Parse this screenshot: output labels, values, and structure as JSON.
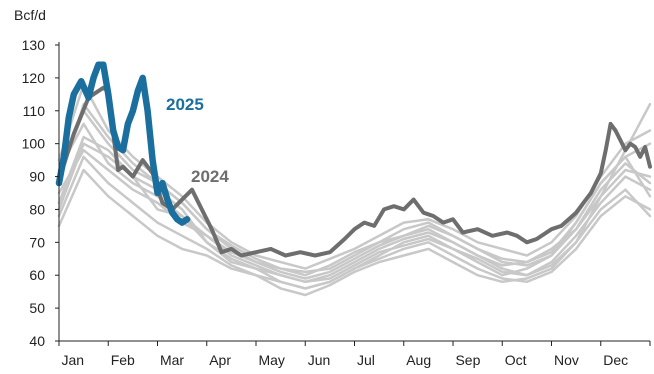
{
  "chart_data": {
    "type": "line",
    "ylabel": "Bcf/d",
    "ylim": [
      40,
      130
    ],
    "yticks": [
      40,
      50,
      60,
      70,
      80,
      90,
      100,
      110,
      120,
      130
    ],
    "xlim": [
      0,
      12
    ],
    "x_tick_labels": [
      "Jan",
      "Feb",
      "Mar",
      "Apr",
      "May",
      "Jun",
      "Jul",
      "Aug",
      "Sep",
      "Oct",
      "Nov",
      "Dec"
    ],
    "grid": false,
    "colors": {
      "history": "#c8c8c8",
      "y2024": "#6e6e6e",
      "y2025": "#1a6f9e"
    },
    "annotations": [
      {
        "text": "2025",
        "series": "2025"
      },
      {
        "text": "2024",
        "series": "2024"
      }
    ],
    "series": [
      {
        "name": "2025",
        "x": [
          0.0,
          0.1,
          0.2,
          0.3,
          0.45,
          0.6,
          0.7,
          0.8,
          0.9,
          1.0,
          1.1,
          1.2,
          1.3,
          1.4,
          1.5,
          1.6,
          1.7,
          1.8,
          1.9,
          2.0,
          2.1,
          2.2,
          2.3,
          2.4,
          2.5,
          2.6
        ],
        "y": [
          88,
          96,
          108,
          115,
          119,
          114,
          120,
          124,
          124,
          115,
          104,
          99,
          98,
          106,
          110,
          116,
          120,
          110,
          95,
          85,
          88,
          83,
          79,
          77,
          76,
          77
        ]
      },
      {
        "name": "2024",
        "x": [
          0.0,
          0.3,
          0.6,
          0.9,
          1.0,
          1.1,
          1.2,
          1.3,
          1.5,
          1.7,
          1.9,
          2.1,
          2.3,
          2.5,
          2.7,
          2.9,
          3.1,
          3.3,
          3.5,
          3.7,
          4.0,
          4.3,
          4.6,
          4.9,
          5.2,
          5.5,
          5.8,
          6.0,
          6.2,
          6.4,
          6.6,
          6.8,
          7.0,
          7.2,
          7.4,
          7.6,
          7.8,
          8.0,
          8.2,
          8.5,
          8.8,
          9.1,
          9.3,
          9.5,
          9.7,
          10.0,
          10.2,
          10.5,
          10.8,
          11.0,
          11.1,
          11.2,
          11.3,
          11.4,
          11.5,
          11.6,
          11.7,
          11.8,
          11.9,
          12.0
        ],
        "y": [
          89,
          103,
          114,
          117,
          116,
          103,
          92,
          93,
          90,
          95,
          91,
          82,
          80,
          83,
          86,
          80,
          74,
          67,
          68,
          66,
          67,
          68,
          66,
          67,
          66,
          67,
          71,
          74,
          76,
          75,
          80,
          81,
          80,
          83,
          79,
          78,
          76,
          77,
          73,
          74,
          72,
          73,
          72,
          70,
          71,
          74,
          75,
          79,
          85,
          91,
          98,
          106,
          104,
          101,
          98,
          100,
          99,
          96,
          99,
          93
        ]
      },
      {
        "name": "",
        "x": [
          0.0,
          0.5,
          1.0,
          1.5,
          2.0,
          2.5,
          3.0,
          3.5,
          4.0,
          4.5,
          5.0,
          5.5,
          6.0,
          6.5,
          7.0,
          7.5,
          8.0,
          8.5,
          9.0,
          9.5,
          10.0,
          10.5,
          11.0,
          11.5,
          12.0
        ],
        "y": [
          80,
          100,
          96,
          90,
          80,
          78,
          70,
          64,
          62,
          58,
          56,
          58,
          62,
          66,
          70,
          72,
          68,
          64,
          60,
          62,
          66,
          76,
          88,
          96,
          84
        ]
      },
      {
        "name": "",
        "x": [
          0.0,
          0.5,
          1.0,
          1.5,
          2.0,
          2.5,
          3.0,
          3.5,
          4.0,
          4.5,
          5.0,
          5.5,
          6.0,
          6.5,
          7.0,
          7.5,
          8.0,
          8.5,
          9.0,
          9.5,
          10.0,
          10.5,
          11.0,
          11.5,
          12.0
        ],
        "y": [
          90,
          110,
          100,
          92,
          88,
          82,
          74,
          68,
          64,
          62,
          60,
          63,
          67,
          70,
          72,
          74,
          70,
          66,
          63,
          64,
          68,
          74,
          84,
          92,
          90
        ]
      },
      {
        "name": "",
        "x": [
          0.0,
          0.5,
          1.0,
          1.5,
          2.0,
          2.5,
          3.0,
          3.5,
          4.0,
          4.5,
          5.0,
          5.5,
          6.0,
          6.5,
          7.0,
          7.5,
          8.0,
          8.5,
          9.0,
          9.5,
          10.0,
          10.5,
          11.0,
          11.5,
          12.0
        ],
        "y": [
          75,
          92,
          84,
          78,
          72,
          68,
          66,
          62,
          60,
          56,
          54,
          57,
          61,
          64,
          66,
          68,
          64,
          60,
          58,
          59,
          62,
          70,
          80,
          86,
          78
        ]
      },
      {
        "name": "",
        "x": [
          0.0,
          0.5,
          1.0,
          1.5,
          2.0,
          2.5,
          3.0,
          3.5,
          4.0,
          4.5,
          5.0,
          5.5,
          6.0,
          6.5,
          7.0,
          7.5,
          8.0,
          8.5,
          9.0,
          9.5,
          10.0,
          10.5,
          11.0,
          11.5,
          12.0
        ],
        "y": [
          95,
          118,
          104,
          96,
          90,
          84,
          76,
          70,
          66,
          64,
          62,
          65,
          68,
          72,
          76,
          77,
          74,
          70,
          68,
          66,
          70,
          78,
          90,
          100,
          104
        ]
      },
      {
        "name": "",
        "x": [
          0.0,
          0.5,
          1.0,
          1.5,
          2.0,
          2.5,
          3.0,
          3.5,
          4.0,
          4.5,
          5.0,
          5.5,
          6.0,
          6.5,
          7.0,
          7.5,
          8.0,
          8.5,
          9.0,
          9.5,
          10.0,
          10.5,
          11.0,
          11.5,
          12.0
        ],
        "y": [
          85,
          98,
          92,
          86,
          82,
          76,
          72,
          66,
          63,
          60,
          58,
          60,
          64,
          68,
          71,
          73,
          70,
          66,
          62,
          60,
          64,
          72,
          82,
          90,
          86
        ]
      },
      {
        "name": "",
        "x": [
          0.0,
          0.5,
          1.0,
          1.5,
          2.0,
          2.5,
          3.0,
          3.5,
          4.0,
          4.5,
          5.0,
          5.5,
          6.0,
          6.5,
          7.0,
          7.5,
          8.0,
          8.5,
          9.0,
          9.5,
          10.0,
          10.5,
          11.0,
          11.5,
          12.0
        ],
        "y": [
          82,
          102,
          98,
          90,
          86,
          80,
          70,
          65,
          62,
          60,
          58,
          59,
          63,
          67,
          69,
          71,
          68,
          65,
          61,
          60,
          63,
          70,
          84,
          98,
          112
        ]
      },
      {
        "name": "",
        "x": [
          0.0,
          0.5,
          1.0,
          1.5,
          2.0,
          2.5,
          3.0,
          3.5,
          4.0,
          4.5,
          5.0,
          5.5,
          6.0,
          6.5,
          7.0,
          7.5,
          8.0,
          8.5,
          9.0,
          9.5,
          10.0,
          10.5,
          11.0,
          11.5,
          12.0
        ],
        "y": [
          92,
          106,
          94,
          88,
          84,
          78,
          72,
          67,
          64,
          61,
          59,
          61,
          65,
          69,
          72,
          75,
          72,
          68,
          64,
          63,
          66,
          74,
          86,
          94,
          88
        ]
      },
      {
        "name": "",
        "x": [
          0.0,
          0.5,
          1.0,
          1.5,
          2.0,
          2.5,
          3.0,
          3.5,
          4.0,
          4.5,
          5.0,
          5.5,
          6.0,
          6.5,
          7.0,
          7.5,
          8.0,
          8.5,
          9.0,
          9.5,
          10.0,
          10.5,
          11.0,
          11.5,
          12.0
        ],
        "y": [
          78,
          96,
          88,
          82,
          76,
          72,
          68,
          63,
          60,
          58,
          56,
          58,
          62,
          65,
          68,
          70,
          66,
          62,
          59,
          58,
          61,
          68,
          78,
          84,
          80
        ]
      },
      {
        "name": "",
        "x": [
          0.0,
          0.5,
          1.0,
          1.5,
          2.0,
          2.5,
          3.0,
          3.5,
          4.0,
          4.5,
          5.0,
          5.5,
          6.0,
          6.5,
          7.0,
          7.5,
          8.0,
          8.5,
          9.0,
          9.5,
          10.0,
          10.5,
          11.0,
          11.5,
          12.0
        ],
        "y": [
          88,
          112,
          102,
          94,
          88,
          82,
          74,
          69,
          65,
          62,
          61,
          62,
          66,
          70,
          74,
          76,
          72,
          68,
          65,
          64,
          67,
          76,
          88,
          96,
          100
        ]
      }
    ]
  }
}
